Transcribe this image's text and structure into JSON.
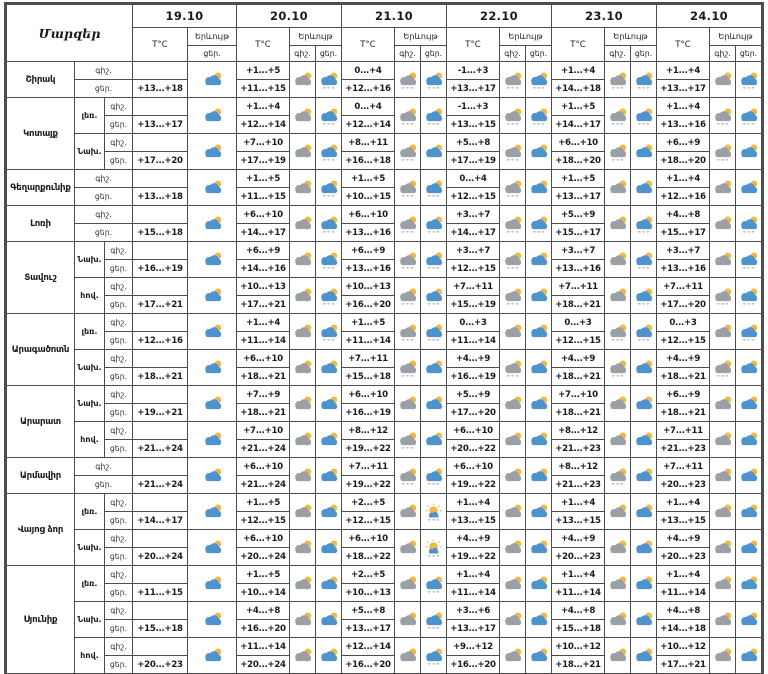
{
  "header": {
    "corner": "Մարզեր",
    "temp_label": "T°C",
    "phenomenon_label": "Երևույթ",
    "night_label": "գիշ.",
    "day_label": "ցեր.",
    "dates": [
      "19.10",
      "20.10",
      "21.10",
      "22.10",
      "23.10",
      "24.10"
    ],
    "first_date_day_only": true
  },
  "colors": {
    "cloud_blue": "#4f93cd",
    "cloud_gray": "#9aa0a6",
    "sun": "#f0b844",
    "border": "#4d4d4d",
    "drizzle": "#8f969c"
  },
  "icon_legend": {
    "pc-blue": "sun behind blue cloud (partly cloudy)",
    "pc-blue-drz": "sun behind blue cloud with drizzle",
    "pc-gray": "sun behind gray cloud",
    "pc-gray-drz": "sun behind gray cloud with drizzle",
    "sun-cloud-drz": "mostly sunny with small cloud and drizzle"
  },
  "regions": [
    {
      "name": "Շիրակ",
      "zones": [
        {
          "zone": "",
          "cells": [
            {
              "day": "+13...+18",
              "icon": "pc-blue"
            },
            {
              "night": "+1...+5",
              "day": "+11...+15",
              "icon_night": "pc-gray",
              "icon_day": "pc-blue-drz"
            },
            {
              "night": "0...+4",
              "day": "+12...+16",
              "icon_night": "pc-gray-drz",
              "icon_day": "pc-blue-drz"
            },
            {
              "night": "-1...+3",
              "day": "+13...+17",
              "icon_night": "pc-gray-drz",
              "icon_day": "pc-blue-drz"
            },
            {
              "night": "+1...+4",
              "day": "+14...+18",
              "icon_night": "pc-gray-drz",
              "icon_day": "pc-blue-drz"
            },
            {
              "night": "+1...+4",
              "day": "+13...+17",
              "icon_night": "pc-gray",
              "icon_day": "pc-blue-drz"
            }
          ]
        }
      ]
    },
    {
      "name": "Կոտայք",
      "zones": [
        {
          "zone": "լեռ.",
          "cells": [
            {
              "day": "+13...+17",
              "icon": "pc-blue"
            },
            {
              "night": "+1...+4",
              "day": "+12...+14",
              "icon_night": "pc-gray",
              "icon_day": "pc-blue-drz"
            },
            {
              "night": "0...+4",
              "day": "+12...+14",
              "icon_night": "pc-gray-drz",
              "icon_day": "pc-blue-drz"
            },
            {
              "night": "-1...+3",
              "day": "+13...+15",
              "icon_night": "pc-gray-drz",
              "icon_day": "pc-blue-drz"
            },
            {
              "night": "+1...+5",
              "day": "+14...+17",
              "icon_night": "pc-gray-drz",
              "icon_day": "pc-blue-drz"
            },
            {
              "night": "+1...+4",
              "day": "+13...+16",
              "icon_night": "pc-gray-drz",
              "icon_day": "pc-blue-drz"
            }
          ]
        },
        {
          "zone": "Նախ.",
          "cells": [
            {
              "day": "+17...+20",
              "icon": "pc-blue"
            },
            {
              "night": "+7...+10",
              "day": "+17...+19",
              "icon_night": "pc-gray",
              "icon_day": "pc-blue-drz"
            },
            {
              "night": "+8...+11",
              "day": "+16...+18",
              "icon_night": "pc-gray-drz",
              "icon_day": "pc-blue"
            },
            {
              "night": "+5...+8",
              "day": "+17...+19",
              "icon_night": "pc-gray-drz",
              "icon_day": "pc-blue"
            },
            {
              "night": "+6...+10",
              "day": "+18...+20",
              "icon_night": "pc-gray-drz",
              "icon_day": "pc-blue"
            },
            {
              "night": "+6...+9",
              "day": "+18...+20",
              "icon_night": "pc-gray-drz",
              "icon_day": "pc-blue"
            }
          ]
        }
      ]
    },
    {
      "name": "Գեղարքունիք",
      "zones": [
        {
          "zone": "",
          "cells": [
            {
              "day": "+13...+18",
              "icon": "pc-blue"
            },
            {
              "night": "+1...+5",
              "day": "+11...+15",
              "icon_night": "pc-gray",
              "icon_day": "pc-blue-drz"
            },
            {
              "night": "+1...+5",
              "day": "+10...+15",
              "icon_night": "pc-gray-drz",
              "icon_day": "pc-blue-drz"
            },
            {
              "night": "0...+4",
              "day": "+12...+15",
              "icon_night": "pc-gray-drz",
              "icon_day": "pc-blue"
            },
            {
              "night": "+1...+5",
              "day": "+13...+17",
              "icon_night": "pc-gray",
              "icon_day": "pc-blue"
            },
            {
              "night": "+1...+4",
              "day": "+12...+16",
              "icon_night": "pc-gray",
              "icon_day": "pc-blue"
            }
          ]
        }
      ]
    },
    {
      "name": "Լոռի",
      "zones": [
        {
          "zone": "",
          "cells": [
            {
              "day": "+15...+18",
              "icon": "pc-blue"
            },
            {
              "night": "+6...+10",
              "day": "+14...+17",
              "icon_night": "pc-gray",
              "icon_day": "pc-blue-drz"
            },
            {
              "night": "+6...+10",
              "day": "+13...+16",
              "icon_night": "pc-gray-drz",
              "icon_day": "pc-blue-drz"
            },
            {
              "night": "+3...+7",
              "day": "+14...+17",
              "icon_night": "pc-gray-drz",
              "icon_day": "pc-blue-drz"
            },
            {
              "night": "+5...+9",
              "day": "+15...+17",
              "icon_night": "pc-gray",
              "icon_day": "pc-blue-drz"
            },
            {
              "night": "+4...+8",
              "day": "+15...+17",
              "icon_night": "pc-gray",
              "icon_day": "pc-blue-drz"
            }
          ]
        }
      ]
    },
    {
      "name": "Տավուշ",
      "zones": [
        {
          "zone": "Նախ.",
          "cells": [
            {
              "day": "+16...+19",
              "icon": "pc-blue"
            },
            {
              "night": "+6...+9",
              "day": "+14...+16",
              "icon_night": "pc-gray",
              "icon_day": "pc-blue-drz"
            },
            {
              "night": "+6...+9",
              "day": "+13...+16",
              "icon_night": "pc-gray-drz",
              "icon_day": "pc-blue-drz"
            },
            {
              "night": "+3...+7",
              "day": "+12...+15",
              "icon_night": "pc-gray-drz",
              "icon_day": "pc-blue"
            },
            {
              "night": "+3...+7",
              "day": "+13...+16",
              "icon_night": "pc-gray",
              "icon_day": "pc-blue-drz"
            },
            {
              "night": "+3...+7",
              "day": "+13...+16",
              "icon_night": "pc-gray",
              "icon_day": "pc-blue-drz"
            }
          ]
        },
        {
          "zone": "հով.",
          "cells": [
            {
              "day": "+17...+21",
              "icon": "pc-blue"
            },
            {
              "night": "+10...+13",
              "day": "+17...+21",
              "icon_night": "pc-gray",
              "icon_day": "pc-blue-drz"
            },
            {
              "night": "+10...+13",
              "day": "+16...+20",
              "icon_night": "pc-gray-drz",
              "icon_day": "pc-blue-drz"
            },
            {
              "night": "+7...+11",
              "day": "+15...+19",
              "icon_night": "pc-gray-drz",
              "icon_day": "pc-blue"
            },
            {
              "night": "+7...+11",
              "day": "+18...+21",
              "icon_night": "pc-gray",
              "icon_day": "pc-blue-drz"
            },
            {
              "night": "+7...+11",
              "day": "+17...+20",
              "icon_night": "pc-gray-drz",
              "icon_day": "pc-blue-drz"
            }
          ]
        }
      ]
    },
    {
      "name": "Արագածոտն",
      "zones": [
        {
          "zone": "լեռ.",
          "cells": [
            {
              "day": "+12...+16",
              "icon": "pc-blue"
            },
            {
              "night": "+1...+4",
              "day": "+11...+14",
              "icon_night": "pc-gray",
              "icon_day": "pc-blue-drz"
            },
            {
              "night": "+1...+5",
              "day": "+11...+14",
              "icon_night": "pc-gray-drz",
              "icon_day": "pc-blue-drz"
            },
            {
              "night": "0...+3",
              "day": "+11...+14",
              "icon_night": "pc-gray",
              "icon_day": "pc-blue"
            },
            {
              "night": "0...+3",
              "day": "+12...+15",
              "icon_night": "pc-gray-drz",
              "icon_day": "pc-blue-drz"
            },
            {
              "night": "0...+3",
              "day": "+12...+15",
              "icon_night": "pc-gray",
              "icon_day": "pc-blue-drz"
            }
          ]
        },
        {
          "zone": "Նախ.",
          "cells": [
            {
              "day": "+18...+21",
              "icon": "pc-blue"
            },
            {
              "night": "+6...+10",
              "day": "+18...+21",
              "icon_night": "pc-gray",
              "icon_day": "pc-blue"
            },
            {
              "night": "+7...+11",
              "day": "+15...+18",
              "icon_night": "pc-gray-drz",
              "icon_day": "pc-blue"
            },
            {
              "night": "+4...+9",
              "day": "+16...+19",
              "icon_night": "pc-gray-drz",
              "icon_day": "pc-blue"
            },
            {
              "night": "+4...+9",
              "day": "+18...+21",
              "icon_night": "pc-gray-drz",
              "icon_day": "pc-blue"
            },
            {
              "night": "+4...+9",
              "day": "+18...+21",
              "icon_night": "pc-gray-drz",
              "icon_day": "pc-blue"
            }
          ]
        }
      ]
    },
    {
      "name": "Արարատ",
      "zones": [
        {
          "zone": "Նախ.",
          "cells": [
            {
              "day": "+19...+21",
              "icon": "pc-blue"
            },
            {
              "night": "+7...+9",
              "day": "+18...+21",
              "icon_night": "pc-gray",
              "icon_day": "pc-blue"
            },
            {
              "night": "+6...+10",
              "day": "+16...+19",
              "icon_night": "pc-gray",
              "icon_day": "pc-blue"
            },
            {
              "night": "+5...+9",
              "day": "+17...+20",
              "icon_night": "pc-gray",
              "icon_day": "pc-blue"
            },
            {
              "night": "+7...+10",
              "day": "+18...+21",
              "icon_night": "pc-gray",
              "icon_day": "pc-blue"
            },
            {
              "night": "+6...+9",
              "day": "+18...+21",
              "icon_night": "pc-gray",
              "icon_day": "pc-blue"
            }
          ]
        },
        {
          "zone": "հով.",
          "cells": [
            {
              "day": "+21...+24",
              "icon": "pc-blue"
            },
            {
              "night": "+7...+10",
              "day": "+21...+24",
              "icon_night": "pc-gray",
              "icon_day": "pc-blue"
            },
            {
              "night": "+8...+12",
              "day": "+19...+22",
              "icon_night": "pc-gray-drz",
              "icon_day": "pc-blue"
            },
            {
              "night": "+6...+10",
              "day": "+20...+22",
              "icon_night": "pc-gray",
              "icon_day": "pc-blue"
            },
            {
              "night": "+8...+12",
              "day": "+21...+23",
              "icon_night": "pc-gray",
              "icon_day": "pc-blue"
            },
            {
              "night": "+7...+11",
              "day": "+21...+23",
              "icon_night": "pc-gray",
              "icon_day": "pc-blue"
            }
          ]
        }
      ]
    },
    {
      "name": "Արմավիր",
      "zones": [
        {
          "zone": "",
          "cells": [
            {
              "day": "+21...+24",
              "icon": "pc-blue"
            },
            {
              "night": "+6...+10",
              "day": "+21...+24",
              "icon_night": "pc-gray",
              "icon_day": "pc-blue"
            },
            {
              "night": "+7...+11",
              "day": "+19...+22",
              "icon_night": "pc-gray-drz",
              "icon_day": "pc-blue-drz"
            },
            {
              "night": "+6...+10",
              "day": "+19...+22",
              "icon_night": "pc-gray",
              "icon_day": "pc-blue"
            },
            {
              "night": "+8...+12",
              "day": "+21...+23",
              "icon_night": "pc-gray-drz",
              "icon_day": "pc-blue"
            },
            {
              "night": "+7...+11",
              "day": "+20...+23",
              "icon_night": "pc-gray",
              "icon_day": "pc-blue"
            }
          ]
        }
      ]
    },
    {
      "name": "Վայոց ձոր",
      "zones": [
        {
          "zone": "լեռ.",
          "cells": [
            {
              "day": "+14...+17",
              "icon": "pc-blue"
            },
            {
              "night": "+1...+5",
              "day": "+12...+15",
              "icon_night": "pc-gray",
              "icon_day": "pc-blue"
            },
            {
              "night": "+2...+5",
              "day": "+12...+15",
              "icon_night": "pc-gray",
              "icon_day": "sun-cloud-drz"
            },
            {
              "night": "+1...+4",
              "day": "+13...+15",
              "icon_night": "pc-gray",
              "icon_day": "pc-blue"
            },
            {
              "night": "+1...+4",
              "day": "+13...+15",
              "icon_night": "pc-gray",
              "icon_day": "pc-blue"
            },
            {
              "night": "+1...+4",
              "day": "+13...+15",
              "icon_night": "pc-gray",
              "icon_day": "pc-blue"
            }
          ]
        },
        {
          "zone": "Նախ.",
          "cells": [
            {
              "day": "+20...+24",
              "icon": "pc-blue"
            },
            {
              "night": "+6...+10",
              "day": "+20...+24",
              "icon_night": "pc-gray",
              "icon_day": "pc-blue"
            },
            {
              "night": "+6...+10",
              "day": "+18...+22",
              "icon_night": "pc-gray",
              "icon_day": "sun-cloud-drz"
            },
            {
              "night": "+4...+9",
              "day": "+19...+22",
              "icon_night": "pc-gray",
              "icon_day": "pc-blue"
            },
            {
              "night": "+4...+9",
              "day": "+20...+23",
              "icon_night": "pc-gray",
              "icon_day": "pc-blue"
            },
            {
              "night": "+4...+9",
              "day": "+20...+23",
              "icon_night": "pc-gray",
              "icon_day": "pc-blue"
            }
          ]
        }
      ]
    },
    {
      "name": "Սյունիք",
      "zones": [
        {
          "zone": "լեռ.",
          "cells": [
            {
              "day": "+11...+15",
              "icon": "pc-blue"
            },
            {
              "night": "+1...+5",
              "day": "+10...+14",
              "icon_night": "pc-gray",
              "icon_day": "pc-blue"
            },
            {
              "night": "+2...+5",
              "day": "+10...+13",
              "icon_night": "pc-gray",
              "icon_day": "pc-blue-drz"
            },
            {
              "night": "+1...+4",
              "day": "+11...+14",
              "icon_night": "pc-gray",
              "icon_day": "pc-blue"
            },
            {
              "night": "+1...+4",
              "day": "+11...+14",
              "icon_night": "pc-gray",
              "icon_day": "pc-blue"
            },
            {
              "night": "+1...+4",
              "day": "+11...+14",
              "icon_night": "pc-gray",
              "icon_day": "pc-blue"
            }
          ]
        },
        {
          "zone": "Նախ.",
          "cells": [
            {
              "day": "+15...+18",
              "icon": "pc-blue"
            },
            {
              "night": "+4...+8",
              "day": "+16...+20",
              "icon_night": "pc-gray",
              "icon_day": "pc-blue"
            },
            {
              "night": "+5...+8",
              "day": "+13...+17",
              "icon_night": "pc-gray",
              "icon_day": "pc-blue-drz"
            },
            {
              "night": "+3...+6",
              "day": "+13...+17",
              "icon_night": "pc-gray",
              "icon_day": "pc-blue"
            },
            {
              "night": "+4...+8",
              "day": "+15...+18",
              "icon_night": "pc-gray",
              "icon_day": "pc-blue"
            },
            {
              "night": "+4...+8",
              "day": "+14...+18",
              "icon_night": "pc-gray",
              "icon_day": "pc-blue"
            }
          ]
        },
        {
          "zone": "հով.",
          "cells": [
            {
              "day": "+20...+23",
              "icon": "pc-blue"
            },
            {
              "night": "+11...+14",
              "day": "+20...+24",
              "icon_night": "pc-gray",
              "icon_day": "pc-blue"
            },
            {
              "night": "+12...+14",
              "day": "+16...+20",
              "icon_night": "pc-gray",
              "icon_day": "pc-blue-drz"
            },
            {
              "night": "+9...+12",
              "day": "+16...+20",
              "icon_night": "pc-gray",
              "icon_day": "pc-blue"
            },
            {
              "night": "+10...+12",
              "day": "+18...+21",
              "icon_night": "pc-gray",
              "icon_day": "pc-blue"
            },
            {
              "night": "+10...+12",
              "day": "+17...+21",
              "icon_night": "pc-gray",
              "icon_day": "pc-blue"
            }
          ]
        }
      ]
    }
  ]
}
